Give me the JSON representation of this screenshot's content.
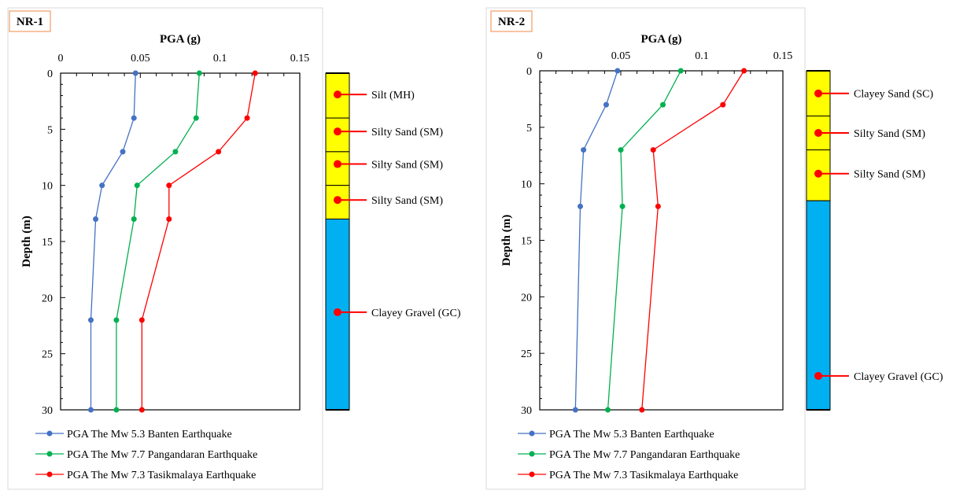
{
  "colors": {
    "banten": "#4472c4",
    "pangandaran": "#00b050",
    "tasikmalaya": "#ff0000",
    "sand_layer": "#ffff00",
    "gravel_layer": "#00b0f0",
    "id_box_border": "#f4b183"
  },
  "legend": [
    {
      "key": "banten",
      "label": "PGA The Mw 5.3 Banten Earthquake"
    },
    {
      "key": "pangandaran",
      "label": "PGA The Mw 7.7 Pangandaran Earthquake"
    },
    {
      "key": "tasikmalaya",
      "label": "PGA The Mw 7.3 Tasikmalaya Earthquake"
    }
  ],
  "chart_data": [
    {
      "type": "line",
      "panel_id": "NR-1",
      "xlabel": "PGA (g)",
      "ylabel": "Depth (m)",
      "xlim": [
        0,
        0.15
      ],
      "ylim": [
        0,
        30
      ],
      "x_axis_position": "top",
      "y_inverted": true,
      "xticks": [
        "0",
        "0.05",
        "0.1",
        "0.15"
      ],
      "yticks": [
        "0",
        "5",
        "10",
        "15",
        "20",
        "25",
        "30"
      ],
      "series": [
        {
          "key": "banten",
          "name": "PGA The Mw 5.3 Banten Earthquake",
          "points": [
            [
              0.047,
              0
            ],
            [
              0.046,
              4
            ],
            [
              0.039,
              7
            ],
            [
              0.026,
              10
            ],
            [
              0.022,
              13
            ],
            [
              0.019,
              22
            ],
            [
              0.019,
              30
            ]
          ]
        },
        {
          "key": "pangandaran",
          "name": "PGA The Mw 7.7 Pangandaran Earthquake",
          "points": [
            [
              0.087,
              0
            ],
            [
              0.085,
              4
            ],
            [
              0.072,
              7
            ],
            [
              0.048,
              10
            ],
            [
              0.046,
              13
            ],
            [
              0.035,
              22
            ],
            [
              0.035,
              30
            ]
          ]
        },
        {
          "key": "tasikmalaya",
          "name": "PGA The Mw 7.3 Tasikmalaya Earthquake",
          "points": [
            [
              0.122,
              0
            ],
            [
              0.117,
              4
            ],
            [
              0.099,
              7
            ],
            [
              0.068,
              10
            ],
            [
              0.068,
              13
            ],
            [
              0.051,
              22
            ],
            [
              0.051,
              30
            ]
          ]
        }
      ],
      "soil_column": [
        {
          "from": 0,
          "to": 4,
          "type": "sand",
          "label": "Silt (MH)",
          "marker_depth": 1.9
        },
        {
          "from": 4,
          "to": 7,
          "type": "sand",
          "label": "Silty Sand (SM)",
          "marker_depth": 5.2
        },
        {
          "from": 7,
          "to": 10,
          "type": "sand",
          "label": "Silty Sand (SM)",
          "marker_depth": 8.1
        },
        {
          "from": 10,
          "to": 13,
          "type": "sand",
          "label": "Silty Sand (SM)",
          "marker_depth": 11.3
        },
        {
          "from": 13,
          "to": 30,
          "type": "gravel",
          "label": "Clayey Gravel (GC)",
          "marker_depth": 21.3
        }
      ]
    },
    {
      "type": "line",
      "panel_id": "NR-2",
      "xlabel": "PGA (g)",
      "ylabel": "Depth (m)",
      "xlim": [
        0,
        0.15
      ],
      "ylim": [
        0,
        30
      ],
      "x_axis_position": "top",
      "y_inverted": true,
      "xticks": [
        "0",
        "0.05",
        "0.1",
        "0.15"
      ],
      "yticks": [
        "0",
        "5",
        "10",
        "15",
        "20",
        "25",
        "30"
      ],
      "series": [
        {
          "key": "banten",
          "name": "PGA The Mw 5.3 Banten Earthquake",
          "points": [
            [
              0.048,
              0
            ],
            [
              0.041,
              3
            ],
            [
              0.027,
              7
            ],
            [
              0.025,
              12
            ],
            [
              0.022,
              30
            ]
          ]
        },
        {
          "key": "pangandaran",
          "name": "PGA The Mw 7.7 Pangandaran Earthquake",
          "points": [
            [
              0.087,
              0
            ],
            [
              0.076,
              3
            ],
            [
              0.05,
              7
            ],
            [
              0.051,
              12
            ],
            [
              0.042,
              30
            ]
          ]
        },
        {
          "key": "tasikmalaya",
          "name": "PGA The Mw 7.3 Tasikmalaya Earthquake",
          "points": [
            [
              0.126,
              0
            ],
            [
              0.113,
              3
            ],
            [
              0.07,
              7
            ],
            [
              0.073,
              12
            ],
            [
              0.063,
              30
            ]
          ]
        }
      ],
      "soil_column": [
        {
          "from": 0,
          "to": 4,
          "type": "sand",
          "label": "Clayey Sand (SC)",
          "marker_depth": 2.0
        },
        {
          "from": 4,
          "to": 7,
          "type": "sand",
          "label": "Silty Sand (SM)",
          "marker_depth": 5.5
        },
        {
          "from": 7,
          "to": 11.5,
          "type": "sand",
          "label": "Silty Sand (SM)",
          "marker_depth": 9.1
        },
        {
          "from": 11.5,
          "to": 30,
          "type": "gravel",
          "label": "Clayey Gravel (GC)",
          "marker_depth": 27.0
        }
      ]
    }
  ]
}
